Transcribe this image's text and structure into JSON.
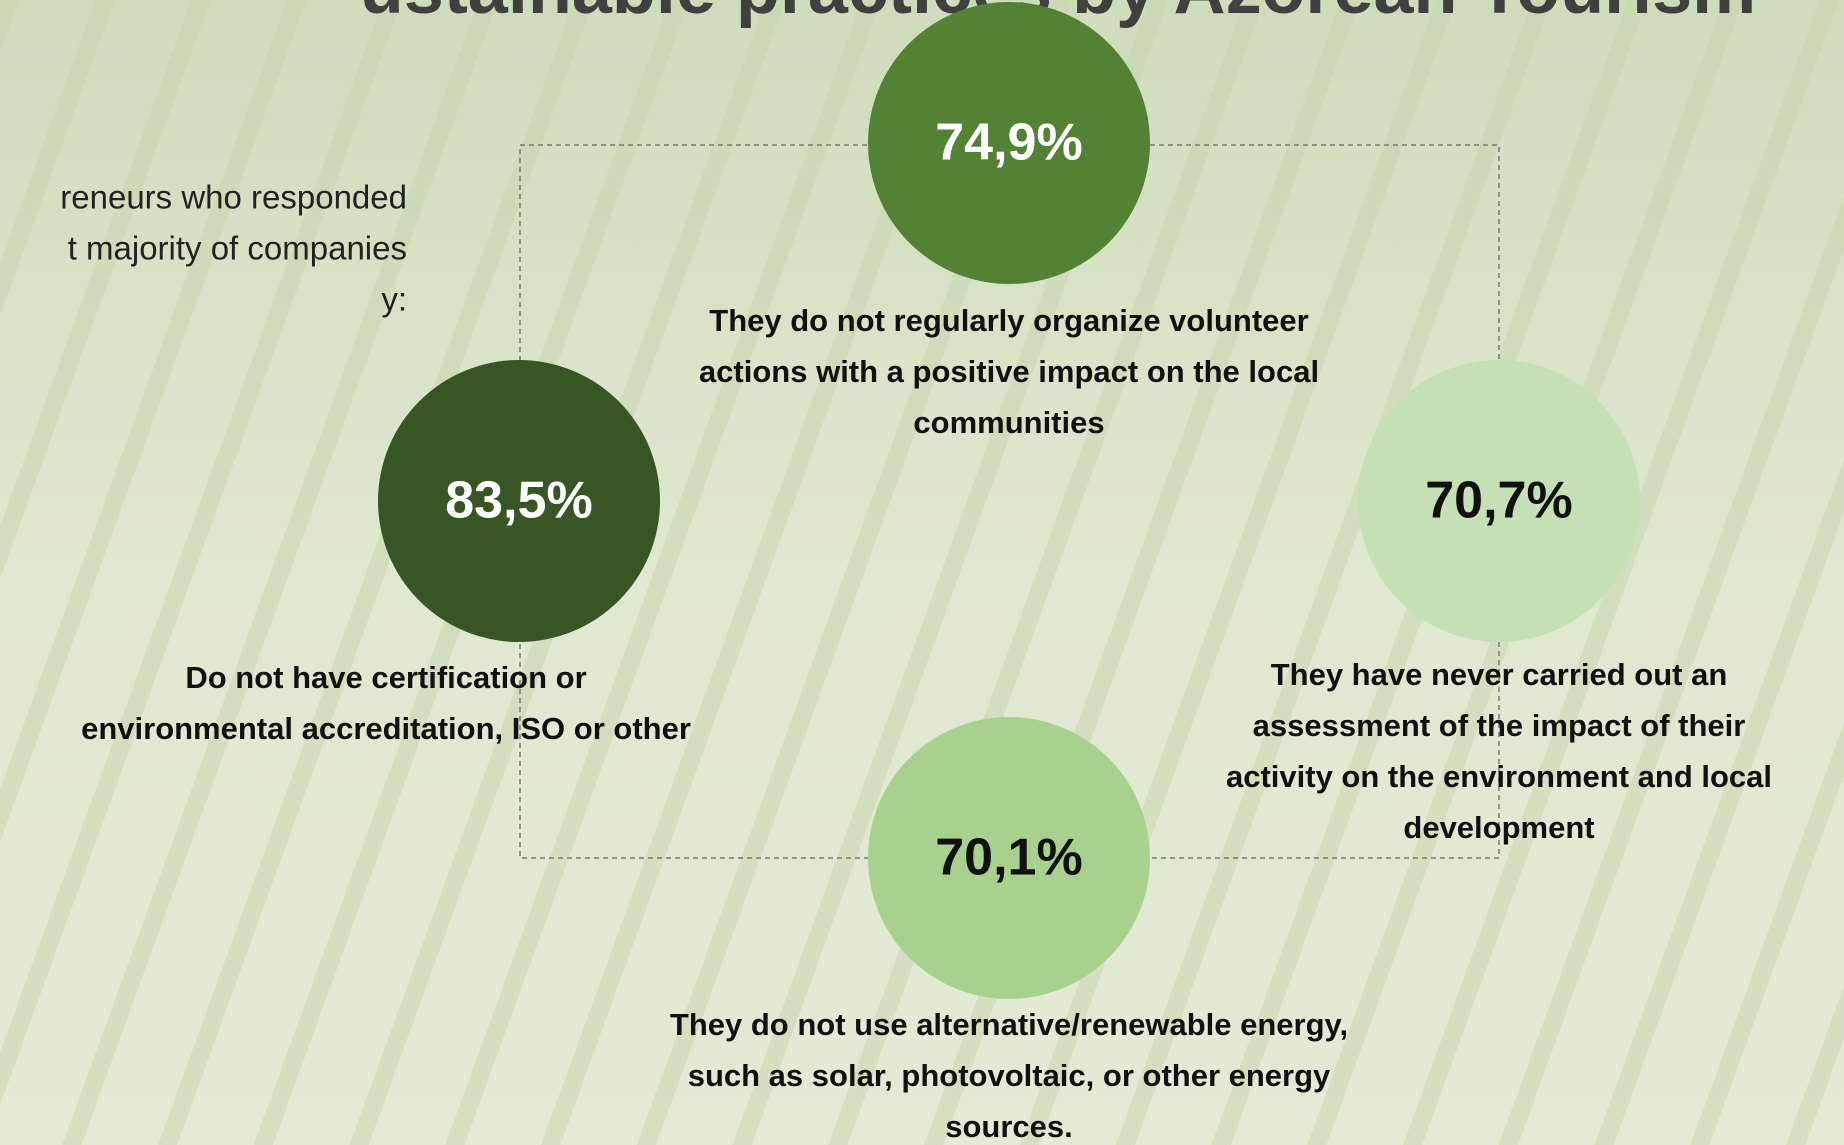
{
  "header": {
    "title": "ustainable practices by Azorean Tourism"
  },
  "intro": {
    "lines": [
      "reneurs who responded",
      "t majority of companies",
      "y:"
    ]
  },
  "stats": [
    {
      "value": "74,9%",
      "lines": [
        "They do not regularly organize volunteer",
        "actions with a positive impact on the local",
        "communities"
      ]
    },
    {
      "value": "83,5%",
      "lines": [
        "Do not have certification or",
        "environmental accreditation, ISO or other"
      ]
    },
    {
      "value": "70,7%",
      "lines": [
        "They have never carried out an",
        "assessment of the impact of their",
        "activity on the environment and local",
        "development"
      ]
    },
    {
      "value": "70,1%",
      "lines": [
        "They do not use alternative/renewable energy,",
        "such as solar, photovoltaic, or other energy",
        "sources."
      ]
    }
  ]
}
